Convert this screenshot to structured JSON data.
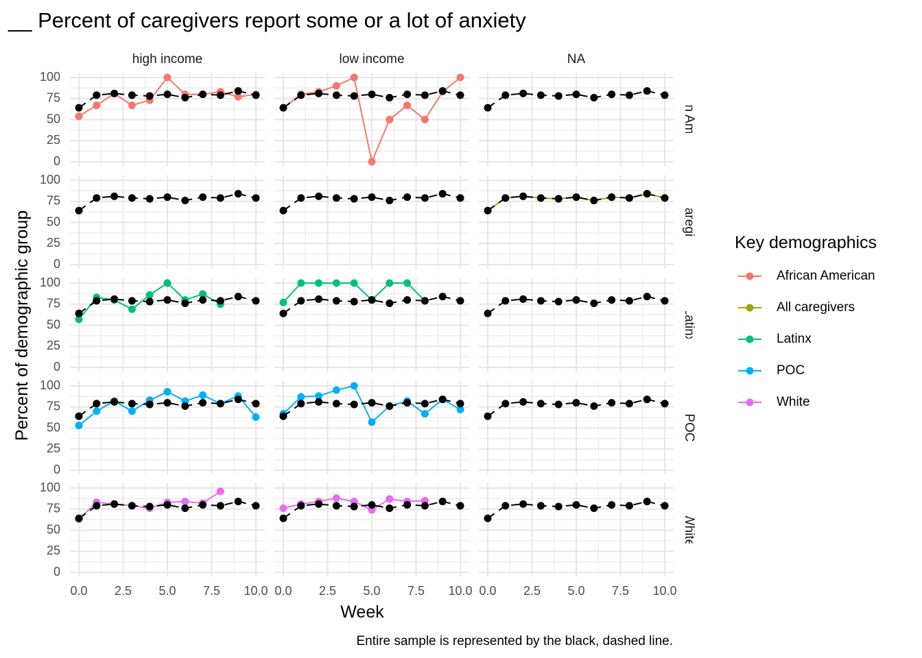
{
  "chart_data": {
    "type": "line",
    "title": "__ Percent of caregivers report some or a lot of anxiety",
    "xlabel": "Week",
    "ylabel": "Percent of demographic group",
    "caption": "Entire sample is represented by the black, dashed line.",
    "xlim": [
      0,
      10
    ],
    "ylim": [
      0,
      100
    ],
    "x_ticks": [
      "0.0",
      "2.5",
      "5.0",
      "7.5",
      "10.0"
    ],
    "y_ticks": [
      "0",
      "25",
      "50",
      "75",
      "100"
    ],
    "grid": true,
    "legend_position": "right",
    "legend_title": "Key demographics",
    "columns": [
      "high income",
      "low income",
      "NA"
    ],
    "rows": [
      "African American",
      "All caregivers",
      "Latinx",
      "POC",
      "White"
    ],
    "row_strip_labels": [
      "rican Americ",
      "All caregivers",
      "Latinx",
      "POC",
      "White"
    ],
    "series_legend": [
      {
        "name": "African American",
        "color": "#F8766D"
      },
      {
        "name": "All caregivers",
        "color": "#A3A500"
      },
      {
        "name": "Latinx",
        "color": "#00BF7D"
      },
      {
        "name": "POC",
        "color": "#00B0F6"
      },
      {
        "name": "White",
        "color": "#E76BF3"
      }
    ],
    "reference_series": {
      "color": "#000000",
      "style": "dashed",
      "x": [
        0,
        1,
        2,
        3,
        4,
        5,
        6,
        7,
        8,
        9,
        10
      ],
      "values": [
        64,
        79,
        81,
        79,
        78,
        80,
        76,
        80,
        79,
        84,
        79
      ]
    },
    "panels": [
      {
        "row": 0,
        "col": 0,
        "series": "African American",
        "x": [
          0,
          1,
          2,
          3,
          4,
          5,
          6,
          7,
          8,
          9,
          10
        ],
        "values": [
          54,
          67,
          81,
          67,
          73,
          100,
          80,
          80,
          83,
          77,
          80
        ]
      },
      {
        "row": 0,
        "col": 1,
        "series": "African American",
        "x": [
          0,
          1,
          2,
          3,
          4,
          5,
          6,
          7,
          8,
          9,
          10
        ],
        "values": [
          64,
          80,
          83,
          90,
          100,
          0,
          50,
          67,
          50,
          83,
          100
        ]
      },
      {
        "row": 1,
        "col": 2,
        "series": "All caregivers",
        "x": [
          0,
          1,
          2,
          3,
          4,
          5,
          6,
          7,
          8,
          9,
          10
        ],
        "values": [
          64,
          79,
          81,
          79,
          78,
          80,
          76,
          80,
          79,
          84,
          79
        ]
      },
      {
        "row": 2,
        "col": 0,
        "series": "Latinx",
        "x": [
          0,
          1,
          2,
          3,
          4,
          5,
          6,
          7,
          8
        ],
        "values": [
          57,
          83,
          80,
          69,
          86,
          100,
          80,
          87,
          75
        ]
      },
      {
        "row": 2,
        "col": 1,
        "series": "Latinx",
        "x": [
          0,
          1,
          2,
          3,
          4,
          5,
          6,
          7,
          8
        ],
        "values": [
          77,
          100,
          100,
          100,
          100,
          80,
          100,
          100,
          79
        ]
      },
      {
        "row": 3,
        "col": 0,
        "series": "POC",
        "x": [
          0,
          1,
          2,
          3,
          4,
          5,
          6,
          7,
          8,
          9,
          10
        ],
        "values": [
          53,
          70,
          82,
          70,
          83,
          93,
          82,
          89,
          79,
          88,
          63
        ]
      },
      {
        "row": 3,
        "col": 1,
        "series": "POC",
        "x": [
          0,
          1,
          2,
          3,
          4,
          5,
          6,
          7,
          8,
          9,
          10
        ],
        "values": [
          67,
          87,
          88,
          95,
          100,
          57,
          76,
          82,
          67,
          84,
          72
        ]
      },
      {
        "row": 4,
        "col": 0,
        "series": "White",
        "x": [
          0,
          1,
          2,
          3,
          4,
          5,
          6,
          7,
          8
        ],
        "values": [
          63,
          83,
          81,
          79,
          76,
          83,
          84,
          82,
          96
        ]
      },
      {
        "row": 4,
        "col": 1,
        "series": "White",
        "x": [
          0,
          1,
          2,
          3,
          4,
          5,
          6,
          7,
          8
        ],
        "values": [
          76,
          81,
          84,
          88,
          84,
          74,
          87,
          84,
          85
        ]
      }
    ]
  }
}
